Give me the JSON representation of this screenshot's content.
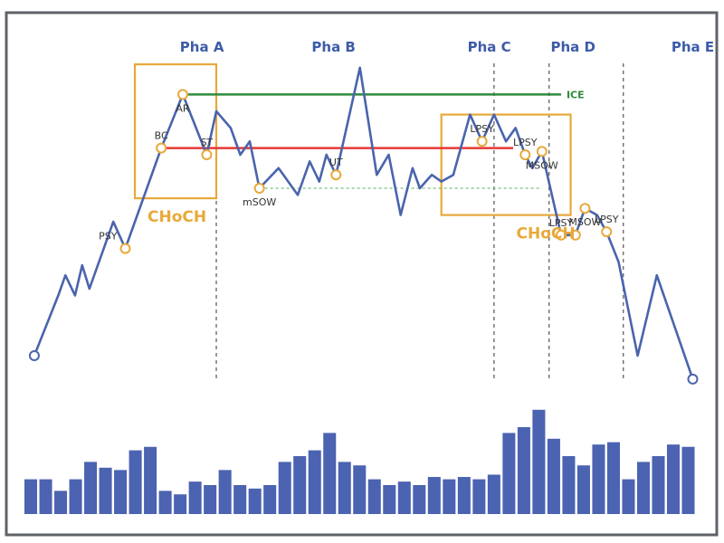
{
  "chart_data": {
    "type": "line",
    "title": "",
    "xlabel": "",
    "ylabel": "",
    "grid": false,
    "colors": {
      "price_line": "#4a64ad",
      "point_stroke": "#e8a93a",
      "phase_label": "#3d5ba8",
      "resistance": "#e53935",
      "support": "#2e8b3d",
      "choch_box": "#e8a93a",
      "volume": "#4b63b0",
      "divider": "#555555"
    },
    "phases": [
      {
        "name": "Pha A",
        "x": 7.0
      },
      {
        "name": "Pha B",
        "x": 12.5
      },
      {
        "name": "Pha C",
        "x": 19.0
      },
      {
        "name": "Pha D",
        "x": 22.5
      },
      {
        "name": "Pha E",
        "x": 27.5
      }
    ],
    "phase_dividers": [
      7.6,
      19.2,
      21.5,
      24.6
    ],
    "price": {
      "x": [
        0,
        1,
        1.3,
        1.7,
        2,
        2.3,
        3.3,
        3.8,
        5.3,
        6.2,
        7.2,
        7.6,
        8.2,
        8.6,
        9.0,
        9.4,
        10.2,
        11.0,
        11.5,
        11.9,
        12.2,
        12.6,
        13.6,
        14.3,
        14.8,
        15.3,
        15.8,
        16.1,
        16.6,
        17.0,
        17.5,
        18.2,
        18.7,
        19.2,
        19.7,
        20.1,
        20.5,
        20.8,
        21.2,
        22.0,
        22.6,
        23.0,
        23.5,
        23.9,
        24.4,
        25.2,
        26.0,
        27.5
      ],
      "y": [
        10,
        28,
        34,
        28,
        37,
        30,
        50,
        42,
        72,
        88,
        70,
        83,
        78,
        70,
        74,
        60,
        66,
        58,
        68,
        62,
        70,
        64,
        96,
        64,
        70,
        52,
        66,
        60,
        64,
        62,
        64,
        82,
        74,
        82,
        74,
        78,
        70,
        66,
        71,
        46,
        46,
        54,
        52,
        47,
        38,
        10,
        34,
        3
      ]
    },
    "points": [
      {
        "label": "",
        "x": 0,
        "y": 10,
        "label_pos": "none"
      },
      {
        "label": "PSY",
        "x": 3.8,
        "y": 42,
        "label_pos": "left"
      },
      {
        "label": "BC",
        "x": 5.3,
        "y": 72,
        "label_pos": "above"
      },
      {
        "label": "AR",
        "x": 6.2,
        "y": 88,
        "label_pos": "below"
      },
      {
        "label": "ST",
        "x": 7.2,
        "y": 70,
        "label_pos": "above"
      },
      {
        "label": "mSOW",
        "x": 9.4,
        "y": 60,
        "label_pos": "below"
      },
      {
        "label": "UT",
        "x": 12.6,
        "y": 64,
        "label_pos": "above"
      },
      {
        "label": "LPSY",
        "x": 18.7,
        "y": 74,
        "label_pos": "above"
      },
      {
        "label": "LPSY",
        "x": 20.5,
        "y": 70,
        "label_pos": "above"
      },
      {
        "label": "MSOW",
        "x": 21.2,
        "y": 71,
        "label_pos": "below"
      },
      {
        "label": "LPSY",
        "x": 22.0,
        "y": 46,
        "label_pos": "above"
      },
      {
        "label": "",
        "x": 22.6,
        "y": 46,
        "label_pos": "none"
      },
      {
        "label": "MSOW",
        "x": 23.0,
        "y": 54,
        "label_pos": "below"
      },
      {
        "label": "LPSY",
        "x": 23.9,
        "y": 47,
        "label_pos": "above"
      },
      {
        "label": "",
        "x": 27.5,
        "y": 3,
        "label_pos": "none"
      }
    ],
    "resistance": {
      "y": 72,
      "x_from": 5.3,
      "x_to": 20.0
    },
    "support": {
      "y": 88,
      "x_from": 6.2,
      "x_to": 22.0,
      "label": "ICE"
    },
    "dotted_support": {
      "y": 60,
      "x_from": 9.4,
      "x_to": 21.2
    },
    "choch_boxes": [
      {
        "label": "CHoCH",
        "x_from": 4.2,
        "x_to": 7.6,
        "y_from": 57,
        "y_to": 97
      },
      {
        "label": "CHoCH",
        "x_from": 17.0,
        "x_to": 22.4,
        "y_from": 52,
        "y_to": 82
      }
    ],
    "volume": [
      30,
      30,
      20,
      30,
      45,
      40,
      38,
      55,
      58,
      20,
      17,
      28,
      25,
      38,
      25,
      22,
      25,
      45,
      50,
      55,
      70,
      45,
      42,
      30,
      25,
      28,
      25,
      32,
      30,
      32,
      30,
      34,
      70,
      75,
      90,
      65,
      50,
      42,
      60,
      62,
      30,
      45,
      50,
      60,
      58
    ],
    "xlim": [
      -0.3,
      28.2
    ],
    "ylim": [
      0,
      100
    ]
  }
}
